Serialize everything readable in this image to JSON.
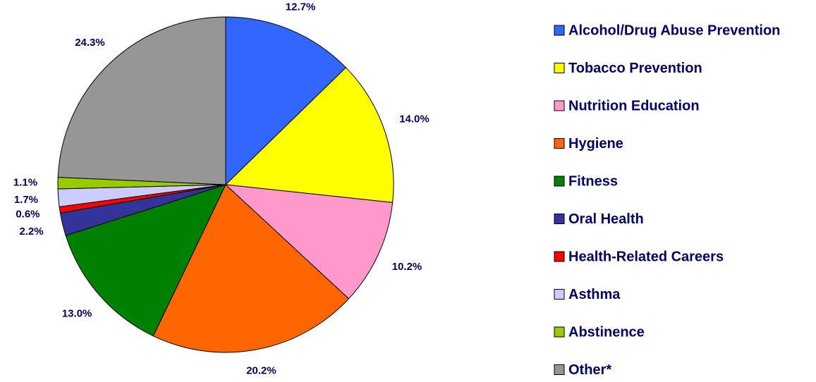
{
  "chart_data": {
    "type": "pie",
    "categories": [
      "Alcohol/Drug Abuse Prevention",
      "Tobacco Prevention",
      "Nutrition Education",
      "Hygiene",
      "Fitness",
      "Oral Health",
      "Health-Related Careers",
      "Asthma",
      "Abstinence",
      "Other*"
    ],
    "values": [
      12.7,
      14.0,
      10.2,
      20.2,
      13.0,
      2.2,
      0.6,
      1.7,
      1.1,
      24.3
    ],
    "value_labels": [
      "12.7%",
      "14.0%",
      "10.2%",
      "20.2%",
      "13.0%",
      "2.2%",
      "0.6%",
      "1.7%",
      "1.1%",
      "24.3%"
    ],
    "colors": [
      "#3366ff",
      "#ffff00",
      "#ff99cc",
      "#ff6600",
      "#008000",
      "#333399",
      "#ff0000",
      "#ccccff",
      "#99cc00",
      "#969696"
    ],
    "legend": "right"
  }
}
